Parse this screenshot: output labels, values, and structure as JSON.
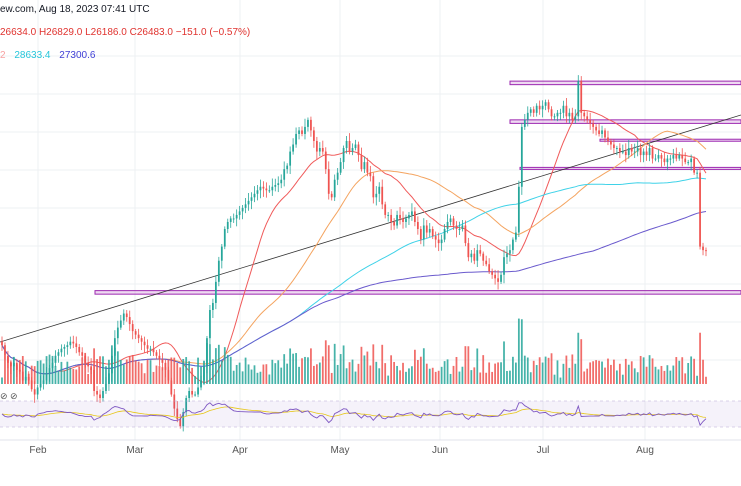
{
  "header": {
    "source_date": "ew.com, Aug 18, 2023 07:41 UTC",
    "ohlc": {
      "open": "26634.0",
      "high": "H26829.0",
      "low": "L26186.0",
      "close": "C26483.0",
      "change": "−151.0 (−0.57%)"
    },
    "ma_values": [
      {
        "text": "2",
        "color": "#f7a1a1"
      },
      {
        "text": "28633.4",
        "color": "#26c6da"
      },
      {
        "text": "27300.6",
        "color": "#3f3fd6"
      }
    ]
  },
  "oscillator_icons": "⊘ ⊘",
  "chart_data": {
    "type": "candlestick",
    "x_labels": [
      "Feb",
      "Mar",
      "Apr",
      "May",
      "Jun",
      "Jul",
      "Aug"
    ],
    "approx_price_range": [
      24800,
      31900
    ],
    "series_closes": [
      23800,
      23500,
      23300,
      23200,
      23300,
      23100,
      23050,
      22800,
      22900,
      22800,
      22550,
      22400,
      22600,
      22700,
      22800,
      23000,
      23150,
      23300,
      23500,
      23600,
      23700,
      23750,
      23800,
      23900,
      23850,
      23750,
      23600,
      23500,
      23300,
      23200,
      23100,
      22500,
      22400,
      22300,
      22500,
      22700,
      23000,
      23500,
      24000,
      24300,
      24500,
      24700,
      24600,
      24400,
      24200,
      24100,
      24000,
      23900,
      23800,
      23700,
      23700,
      23600,
      23500,
      23400,
      23300,
      23100,
      22800,
      22400,
      22000,
      21700,
      21500,
      21900,
      22300,
      22500,
      22400,
      22400,
      22600,
      22800,
      23200,
      24000,
      24800,
      25000,
      25600,
      26200,
      26600,
      27100,
      27300,
      27400,
      27400,
      27500,
      27600,
      27700,
      27800,
      27900,
      28000,
      28100,
      28200,
      28300,
      28250,
      28200,
      28200,
      28300,
      28350,
      28400,
      28500,
      28800,
      28900,
      29300,
      29500,
      29800,
      29900,
      29800,
      30000,
      30200,
      29900,
      29600,
      29300,
      29400,
      29300,
      28800,
      28100,
      28000,
      28500,
      28700,
      29000,
      29400,
      29600,
      29300,
      29400,
      29500,
      29200,
      28800,
      29000,
      28700,
      28600,
      28000,
      28100,
      28300,
      27800,
      27500,
      27500,
      27300,
      27200,
      27500,
      27400,
      27300,
      27400,
      27500,
      27600,
      27300,
      27100,
      26800,
      27200,
      27000,
      27100,
      26900,
      26800,
      26700,
      26800,
      27100,
      27300,
      27400,
      27200,
      27100,
      27100,
      27200,
      26700,
      26300,
      26400,
      26200,
      26500,
      26400,
      26200,
      26100,
      25900,
      25800,
      25700,
      25600,
      25800,
      26300,
      26400,
      26500,
      26800,
      27000,
      28300,
      30000,
      30200,
      30400,
      30500,
      30400,
      30600,
      30500,
      30600,
      30700,
      30500,
      30300,
      30300,
      30400,
      30400,
      30600,
      30300,
      30400,
      30200,
      30300,
      31300,
      30400,
      30300,
      30200,
      30100,
      30000,
      29900,
      29800,
      29900,
      29700,
      29600,
      29500,
      29400,
      29400,
      29300,
      29300,
      29200,
      29400,
      29300,
      29300,
      29400,
      29200,
      29300,
      29200,
      29400,
      29100,
      29100,
      29200,
      29100,
      29000,
      29100,
      29100,
      29200,
      29100,
      29200,
      29100,
      29000,
      29000,
      29100,
      28700,
      28700,
      26600,
      26500,
      26480
    ],
    "moving_averages": [
      {
        "color": "#f05a5a"
      },
      {
        "color": "#f4a460"
      },
      {
        "color": "#3fd2e8"
      },
      {
        "color": "#6a5acd"
      }
    ],
    "horizontal_zones": [
      {
        "from": 31200,
        "to": 31300
      },
      {
        "from": 30100,
        "to": 30200
      },
      {
        "from": 29600,
        "to": 29650
      },
      {
        "from": 28800,
        "to": 28850
      },
      {
        "from": 25250,
        "to": 25350
      }
    ],
    "trendline": {
      "color": "#333333"
    },
    "volume": {
      "up_color": "#26a69a",
      "down_color": "#ef5350"
    },
    "oscillator": {
      "band": [
        30,
        70
      ],
      "line_color": "#7e57c2",
      "signal_color": "#e6c619"
    }
  }
}
